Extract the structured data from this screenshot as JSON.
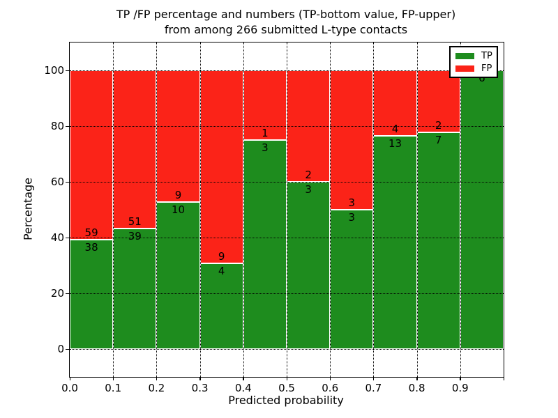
{
  "title": {
    "line1": "TP /FP percentage and numbers (TP-bottom value, FP-upper)",
    "line2": "from among 266 submitted L-type contacts"
  },
  "axes": {
    "x_label": "Predicted probability",
    "y_label": "Percentage",
    "x_ticks": [
      "0.0",
      "0.1",
      "0.2",
      "0.3",
      "0.4",
      "0.5",
      "0.6",
      "0.7",
      "0.8",
      "0.9"
    ],
    "y_ticks": [
      "0",
      "20",
      "40",
      "60",
      "80",
      "100"
    ]
  },
  "legend": [
    {
      "label": "TP",
      "color": "#1e8c1e"
    },
    {
      "label": "FP",
      "color": "#fb2318"
    }
  ],
  "chart_data": {
    "type": "bar",
    "stacked": true,
    "normalized": "each bin scaled to 100%",
    "title": "TP /FP percentage and numbers (TP-bottom value, FP-upper) from among 266 submitted L-type contacts",
    "xlabel": "Predicted probability",
    "ylabel": "Percentage",
    "total_contacts": 266,
    "bins": [
      "0.0-0.1",
      "0.1-0.2",
      "0.2-0.3",
      "0.3-0.4",
      "0.4-0.5",
      "0.5-0.6",
      "0.6-0.7",
      "0.7-0.8",
      "0.8-0.9",
      "0.9-1.0"
    ],
    "series": [
      {
        "name": "TP",
        "color": "#1e8c1e",
        "counts": [
          38,
          39,
          10,
          4,
          3,
          3,
          3,
          13,
          7,
          6
        ]
      },
      {
        "name": "FP",
        "color": "#fb2318",
        "counts": [
          59,
          51,
          9,
          9,
          1,
          2,
          3,
          4,
          2,
          0
        ]
      }
    ],
    "tp_percent": [
      39.18,
      43.33,
      52.63,
      30.77,
      75.0,
      60.0,
      50.0,
      76.47,
      77.78,
      100.0
    ],
    "ylim": [
      -10,
      110
    ],
    "xlim": [
      0.0,
      1.0
    ],
    "y_gridlines": [
      0,
      20,
      40,
      60,
      80,
      100
    ],
    "grid": true,
    "grid_style": "dotted",
    "legend_position": "upper right"
  }
}
